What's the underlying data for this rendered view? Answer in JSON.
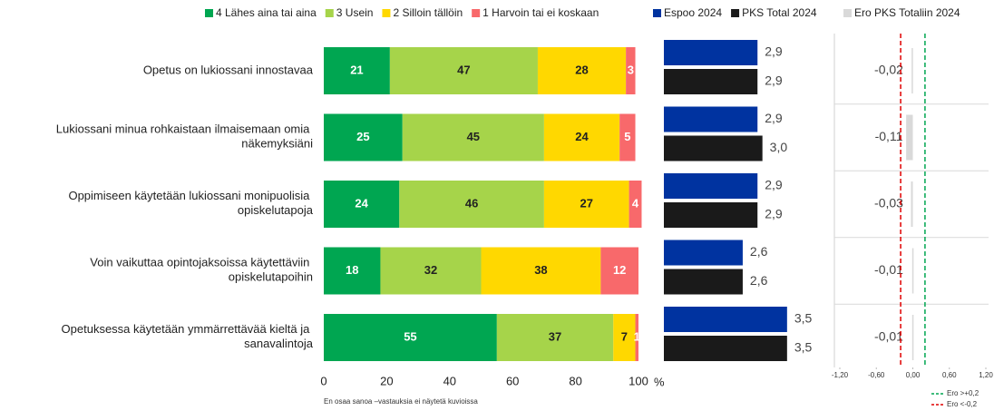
{
  "chart_data": [
    {
      "type": "stacked_bar_horizontal",
      "categories": [
        "Opetus on lukiossani innostavaa",
        "Lukiossani minua rohkaistaan ilmaisemaan omia näkemyksiäni",
        "Oppimiseen käytetään lukiossani monipuolisia opiskelutapoja",
        "Voin vaikuttaa opintojaksoissa käytettäviin opiskelutapoihin",
        "Opetuksessa käytetään ymmärrettävää kieltä ja sanavalintoja"
      ],
      "series": [
        {
          "name": "4 Lähes aina tai aina",
          "color": "#00a651",
          "values": [
            21,
            25,
            24,
            18,
            55
          ]
        },
        {
          "name": "3 Usein",
          "color": "#a6d44a",
          "values": [
            47,
            45,
            46,
            32,
            37
          ]
        },
        {
          "name": "2 Silloin tällöin",
          "color": "#ffd800",
          "values": [
            28,
            24,
            27,
            38,
            7
          ]
        },
        {
          "name": "1 Harvoin tai ei koskaan",
          "color": "#f8696b",
          "values": [
            3,
            5,
            4,
            12,
            1
          ]
        }
      ],
      "xlim": [
        0,
        100
      ],
      "xticks": [
        0,
        20,
        40,
        60,
        80,
        100
      ],
      "xlabel": "%",
      "note": "En osaa sanoa –vastauksia ei näytetä kuvioissa"
    },
    {
      "type": "bar_horizontal",
      "series": [
        {
          "name": "Espoo 2024",
          "color": "#0033a0",
          "values": [
            2.9,
            2.9,
            2.9,
            2.6,
            3.5
          ],
          "value_labels": [
            "2,9",
            "2,9",
            "2,9",
            "2,6",
            "3,5"
          ]
        },
        {
          "name": "PKS Total 2024",
          "color": "#1a1a1a",
          "values": [
            2.9,
            3.0,
            2.9,
            2.6,
            3.5
          ],
          "value_labels": [
            "2,9",
            "3,0",
            "2,9",
            "2,6",
            "3,5"
          ]
        }
      ],
      "xlim": [
        1,
        4
      ]
    },
    {
      "type": "difference_bar",
      "series": [
        {
          "name": "Ero PKS Totaliin 2024",
          "color": "#d9d9d9",
          "values": [
            -0.02,
            -0.11,
            -0.03,
            -0.01,
            -0.01
          ],
          "value_labels": [
            "-0,02",
            "-0,11",
            "-0,03",
            "-0,01",
            "-0,01"
          ]
        }
      ],
      "xlim": [
        -1.2,
        1.2
      ],
      "xticks": [
        {
          "value": -1.2,
          "label": "-1,20"
        },
        {
          "value": -0.6,
          "label": "-0,60"
        },
        {
          "value": 0,
          "label": "0,00"
        },
        {
          "value": 0.6,
          "label": "0,60"
        },
        {
          "value": 1.2,
          "label": "1,20"
        }
      ],
      "reference_lines": [
        {
          "value": 0.2,
          "color": "#00a651",
          "label": "Ero >+0,2"
        },
        {
          "value": -0.2,
          "color": "#e00000",
          "label": "Ero <-0,2"
        }
      ]
    }
  ]
}
